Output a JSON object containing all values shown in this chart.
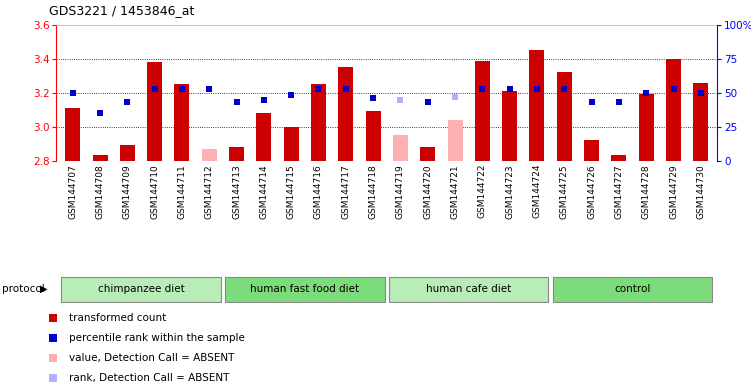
{
  "title": "GDS3221 / 1453846_at",
  "samples": [
    "GSM144707",
    "GSM144708",
    "GSM144709",
    "GSM144710",
    "GSM144711",
    "GSM144712",
    "GSM144713",
    "GSM144714",
    "GSM144715",
    "GSM144716",
    "GSM144717",
    "GSM144718",
    "GSM144719",
    "GSM144720",
    "GSM144721",
    "GSM144722",
    "GSM144723",
    "GSM144724",
    "GSM144725",
    "GSM144726",
    "GSM144727",
    "GSM144728",
    "GSM144729",
    "GSM144730"
  ],
  "bar_values": [
    3.11,
    2.83,
    2.89,
    3.38,
    3.25,
    2.87,
    2.88,
    3.08,
    3.0,
    3.25,
    3.35,
    3.09,
    2.95,
    2.88,
    3.04,
    3.39,
    3.21,
    3.45,
    3.32,
    2.92,
    2.83,
    3.19,
    3.4,
    3.26
  ],
  "bar_absent": [
    false,
    false,
    false,
    false,
    false,
    true,
    false,
    false,
    false,
    false,
    false,
    false,
    true,
    false,
    true,
    false,
    false,
    false,
    false,
    false,
    false,
    false,
    false,
    false
  ],
  "rank_values": [
    50,
    35,
    43,
    53,
    53,
    53,
    43,
    45,
    48,
    53,
    53,
    46,
    45,
    43,
    47,
    53,
    53,
    53,
    53,
    43,
    43,
    50,
    53,
    50
  ],
  "rank_absent": [
    false,
    false,
    false,
    false,
    false,
    false,
    false,
    false,
    false,
    false,
    false,
    false,
    true,
    false,
    true,
    false,
    false,
    false,
    false,
    false,
    false,
    false,
    false,
    false
  ],
  "ylim_left": [
    2.8,
    3.6
  ],
  "ylim_right": [
    0,
    100
  ],
  "yticks_left": [
    2.8,
    3.0,
    3.2,
    3.4,
    3.6
  ],
  "yticks_right": [
    0,
    25,
    50,
    75,
    100
  ],
  "ytick_labels_right": [
    "0",
    "25",
    "50",
    "75",
    "100%"
  ],
  "grid_vals": [
    3.0,
    3.2,
    3.4
  ],
  "groups": [
    {
      "label": "chimpanzee diet",
      "start": 0,
      "end": 5,
      "color": "#b8edb8"
    },
    {
      "label": "human fast food diet",
      "start": 6,
      "end": 11,
      "color": "#7cdc7c"
    },
    {
      "label": "human cafe diet",
      "start": 12,
      "end": 17,
      "color": "#b8edb8"
    },
    {
      "label": "control",
      "start": 18,
      "end": 23,
      "color": "#7cdc7c"
    }
  ],
  "bar_color_present": "#cc0000",
  "bar_color_absent": "#ffb0b0",
  "rank_color_present": "#0000cc",
  "rank_color_absent": "#b0b0ff",
  "bar_width": 0.55,
  "bg_plot": "#ffffff",
  "bg_tick_area": "#d8d8d8",
  "bg_fig": "#ffffff",
  "protocol_label": "protocol"
}
